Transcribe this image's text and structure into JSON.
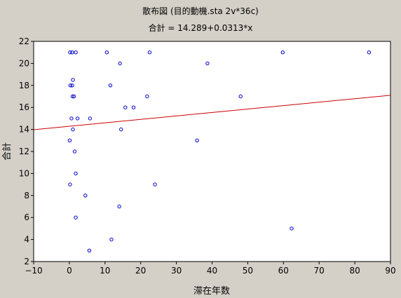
{
  "chart_data": {
    "type": "scatter",
    "title": "散布図 (目的動機.sta 2v*36c)",
    "subtitle": "合計 = 14.289+0.0313*x",
    "xlabel": "滞在年数",
    "ylabel": "合計",
    "xlim": [
      -10,
      90
    ],
    "ylim": [
      2,
      22
    ],
    "xticks": [
      -10,
      0,
      10,
      20,
      30,
      40,
      50,
      60,
      70,
      80,
      90
    ],
    "yticks": [
      2,
      4,
      6,
      8,
      10,
      12,
      14,
      16,
      18,
      20,
      22
    ],
    "grid": false,
    "regression": {
      "intercept": 14.289,
      "slope": 0.0313
    },
    "colors": {
      "point": "#0000cc",
      "regression_line": "#cc0000",
      "plot_background": "#ffffff",
      "frame_background": "#d4d0c8"
    },
    "points": [
      {
        "x": 0.2,
        "y": 21
      },
      {
        "x": 0.8,
        "y": 21
      },
      {
        "x": 1.8,
        "y": 21
      },
      {
        "x": 10.5,
        "y": 21
      },
      {
        "x": 22.5,
        "y": 21
      },
      {
        "x": 59.8,
        "y": 21
      },
      {
        "x": 84,
        "y": 21
      },
      {
        "x": 14.2,
        "y": 20
      },
      {
        "x": 38.7,
        "y": 20
      },
      {
        "x": 1,
        "y": 18.5
      },
      {
        "x": 0.3,
        "y": 18
      },
      {
        "x": 0.8,
        "y": 18
      },
      {
        "x": 11.5,
        "y": 18
      },
      {
        "x": 0.9,
        "y": 17
      },
      {
        "x": 1.3,
        "y": 17
      },
      {
        "x": 21.8,
        "y": 17
      },
      {
        "x": 48,
        "y": 17
      },
      {
        "x": 15.7,
        "y": 16
      },
      {
        "x": 18,
        "y": 16
      },
      {
        "x": 0.6,
        "y": 15
      },
      {
        "x": 2.3,
        "y": 15
      },
      {
        "x": 5.8,
        "y": 15
      },
      {
        "x": 1,
        "y": 14
      },
      {
        "x": 14.5,
        "y": 14
      },
      {
        "x": 0.1,
        "y": 13
      },
      {
        "x": 35.8,
        "y": 13
      },
      {
        "x": 1.5,
        "y": 12
      },
      {
        "x": 1.8,
        "y": 10
      },
      {
        "x": 0.2,
        "y": 9
      },
      {
        "x": 24,
        "y": 9
      },
      {
        "x": 4.5,
        "y": 8
      },
      {
        "x": 14,
        "y": 7
      },
      {
        "x": 1.8,
        "y": 6
      },
      {
        "x": 62.3,
        "y": 5
      },
      {
        "x": 11.8,
        "y": 4
      },
      {
        "x": 5.6,
        "y": 3
      }
    ]
  }
}
